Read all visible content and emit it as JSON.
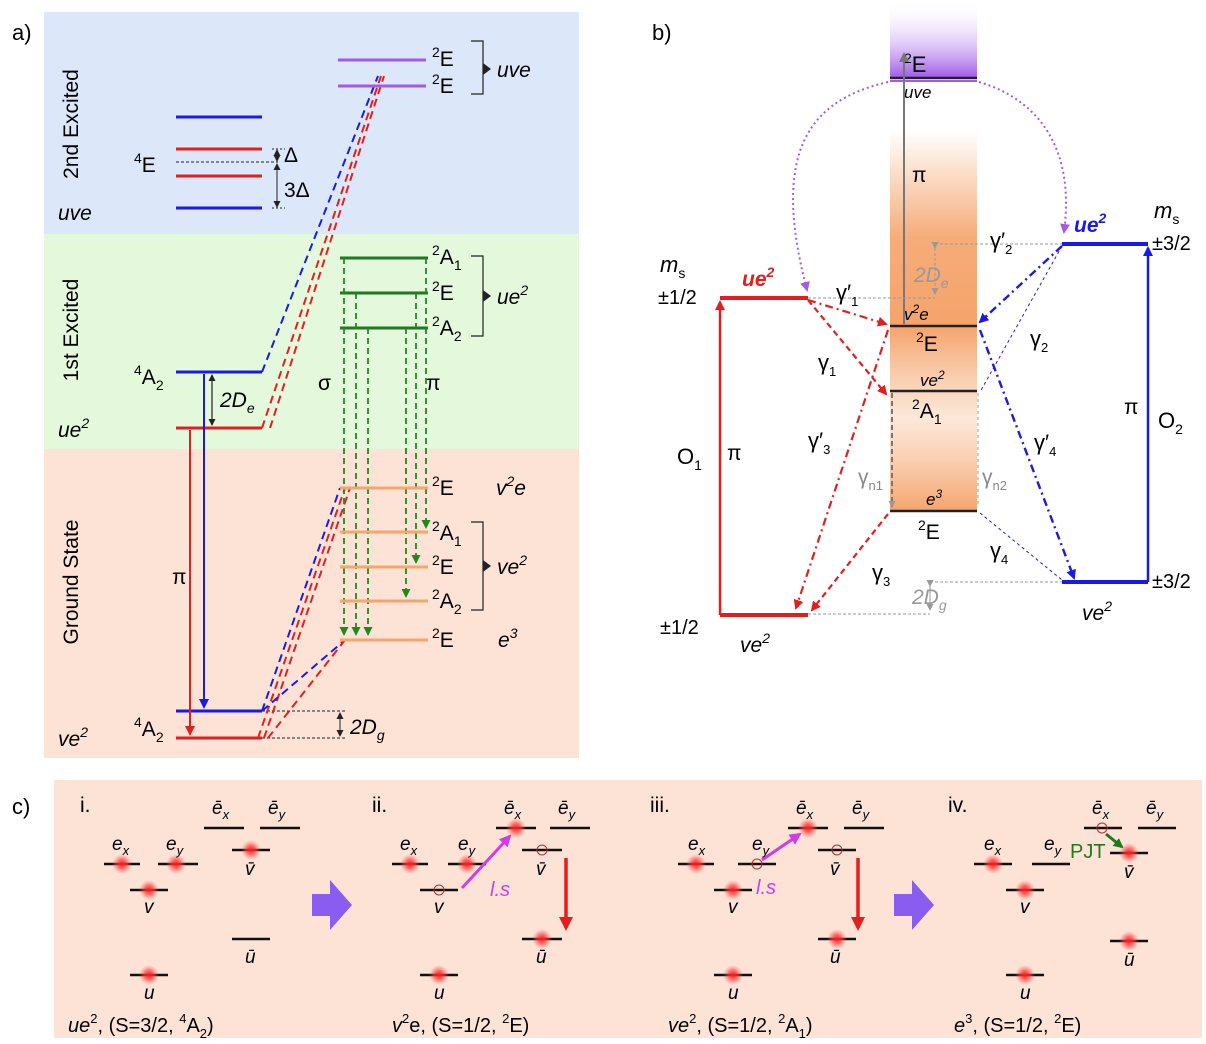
{
  "panel_a": {
    "label": "a)",
    "regions": {
      "second_excited": "2nd Excited",
      "first_excited": "1st Excited",
      "ground": "Ground State"
    },
    "left_labels": {
      "uve": "uve",
      "ue2": "ue",
      "ve2": "ve",
      "sq": "2",
      "q4E": "E",
      "q4A2_top": "A",
      "q4A2_bot": "A",
      "four": "4",
      "sub2": "2"
    },
    "splittings": {
      "delta": "Δ",
      "three_delta": "3Δ",
      "two_de": "2D",
      "de_sub": "e",
      "two_dg": "2D",
      "dg_sub": "g"
    },
    "pi": "π",
    "sigma": "σ",
    "uve_states": [
      {
        "sup": "2",
        "term": "E"
      },
      {
        "sup": "2",
        "term": "E"
      }
    ],
    "uve_config": "uve",
    "ue2_states": [
      {
        "sup": "2",
        "term": "A",
        "sub": "1"
      },
      {
        "sup": "2",
        "term": "E",
        "sub": ""
      },
      {
        "sup": "2",
        "term": "A",
        "sub": "2"
      }
    ],
    "ue2_config": "ue",
    "ground_states": [
      {
        "sup": "2",
        "term": "E",
        "sub": "",
        "config": "v",
        "config_sup": "2",
        "config_tail": "e"
      },
      {
        "sup": "2",
        "term": "A",
        "sub": "1"
      },
      {
        "sup": "2",
        "term": "E",
        "sub": ""
      },
      {
        "sup": "2",
        "term": "A",
        "sub": "2"
      },
      {
        "sup": "2",
        "term": "E",
        "sub": "",
        "config": "e",
        "config_sup": "3",
        "config_tail": ""
      }
    ],
    "ve2_config": "ve"
  },
  "panel_b": {
    "label": "b)",
    "center_states": {
      "uve_term": "E",
      "uve_sup": "2",
      "uve_config": "uve",
      "v2e": "v",
      "v2e_sup": "2",
      "v2e_tail": "e",
      "E_term": "E",
      "ve2": "ve",
      "ve2_sup": "2",
      "A1_term": "A",
      "A1_sub": "1",
      "e3": "e",
      "e3_sup": "3",
      "E2_term": "E",
      "sup": "2"
    },
    "left_side": {
      "ms": "m",
      "ms_sub": "s",
      "ms_val": "±1/2",
      "upper": "ue",
      "lower": "ve",
      "sq": "2",
      "bottom_val": "±1/2",
      "o": "O",
      "o_sub": "1",
      "pi": "π"
    },
    "right_side": {
      "ms": "m",
      "ms_sub": "s",
      "ms_val": "±3/2",
      "upper": "ue",
      "lower": "ve",
      "sq": "2",
      "bottom_val": "±3/2",
      "o": "O",
      "o_sub": "2",
      "pi": "π"
    },
    "rates": {
      "g1p": "γ′",
      "g1p_sub": "1",
      "g1": "γ",
      "g1_sub": "1",
      "g2p": "γ′",
      "g2p_sub": "2",
      "g2": "γ",
      "g2_sub": "2",
      "g3p": "γ′",
      "g3p_sub": "3",
      "g3": "γ",
      "g3_sub": "3",
      "g4p": "γ′",
      "g4p_sub": "4",
      "g4": "γ",
      "g4_sub": "4",
      "gn1": "γ",
      "gn1_sub": "n1",
      "gn2": "γ",
      "gn2_sub": "n2"
    },
    "pi": "π",
    "two_de": "2D",
    "de_sub": "e",
    "two_dg": "2D",
    "dg_sub": "g"
  },
  "panel_c": {
    "label": "c)",
    "steps": [
      {
        "roman": "i.",
        "cap_a": "ue",
        "cap_sup": "2",
        "cap_b": ", (S=3/2, ",
        "cap_term_sup": "4",
        "cap_term": "A",
        "cap_term_sub": "2",
        "cap_end": ")"
      },
      {
        "roman": "ii.",
        "cap_a": "v",
        "cap_sup": "2",
        "cap_b": "e, (S=1/2, ",
        "cap_term_sup": "2",
        "cap_term": "E",
        "cap_term_sub": "",
        "cap_end": ")"
      },
      {
        "roman": "iii.",
        "cap_a": "ve",
        "cap_sup": "2",
        "cap_b": ", (S=1/2, ",
        "cap_term_sup": "2",
        "cap_term": "A",
        "cap_term_sub": "1",
        "cap_end": ")"
      },
      {
        "roman": "iv.",
        "cap_a": "e",
        "cap_sup": "3",
        "cap_b": ", (S=1/2, ",
        "cap_term_sup": "2",
        "cap_term": "E",
        "cap_term_sub": "",
        "cap_end": ")"
      }
    ],
    "orbitals": {
      "ex": "e",
      "ey": "e",
      "x": "x",
      "y": "y",
      "v": "v",
      "u": "u",
      "bar_ex": "ē",
      "bar_v": "v̄",
      "bar_u": "ū"
    },
    "ls": "l.s",
    "pjt": "PJT"
  },
  "colors": {
    "second_bg": "#dce8fa",
    "first_bg": "#e4f8dc",
    "ground_bg": "#fde3d6",
    "red": "#e41e1e",
    "blue": "#1a1ae6",
    "green": "#1e7a1e",
    "orange": "#f4a66c",
    "purple": "#a35ae6",
    "magenta": "#d23ce6"
  }
}
